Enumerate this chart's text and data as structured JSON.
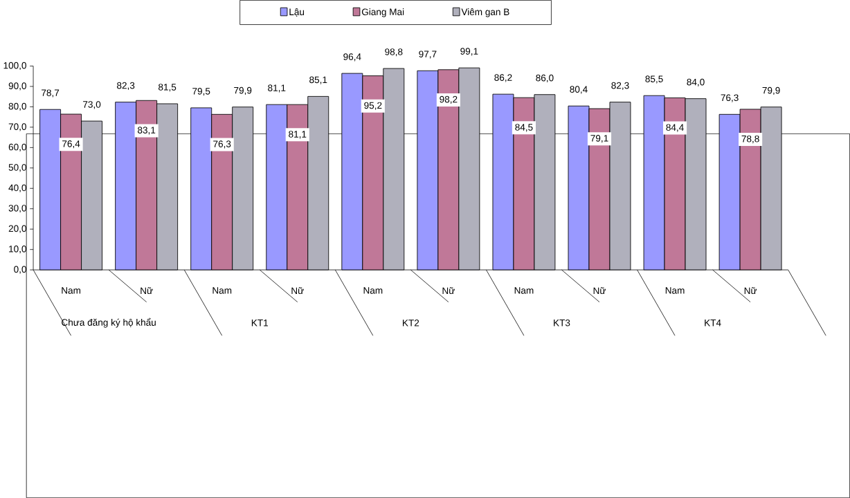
{
  "chart_data": {
    "type": "bar",
    "categories": [
      "Nam",
      "Nữ",
      "Nam",
      "Nữ",
      "Nam",
      "Nữ",
      "Nam",
      "Nữ",
      "Nam",
      "Nữ"
    ],
    "series": [
      {
        "name": "Lậu",
        "color": "#9999ff",
        "values": [
          78.7,
          82.3,
          79.5,
          81.1,
          96.4,
          97.7,
          86.2,
          80.4,
          85.5,
          76.3
        ],
        "value_labels": [
          "78,7",
          "82,3",
          "79,5",
          "81,1",
          "96,4",
          "97,7",
          "86,2",
          "80,4",
          "85,5",
          "76,3"
        ]
      },
      {
        "name": "Giang Mai",
        "color": "#c07898",
        "values": [
          76.4,
          83.1,
          76.3,
          81.1,
          95.2,
          98.2,
          84.5,
          79.1,
          84.4,
          78.8
        ],
        "value_labels": [
          "76,4",
          "83,1",
          "76,3",
          "81,1",
          "95,2",
          "98,2",
          "84,5",
          "79,1",
          "84,4",
          "78,8"
        ]
      },
      {
        "name": "Viêm gan B",
        "color": "#b0b0bc",
        "values": [
          73.0,
          81.5,
          79.9,
          85.1,
          98.8,
          99.1,
          86.0,
          82.3,
          84.0,
          79.9
        ],
        "value_labels": [
          "73,0",
          "81,5",
          "79,9",
          "85,1",
          "98,8",
          "99,1",
          "86,0",
          "82,3",
          "84,0",
          "79,9"
        ]
      }
    ],
    "ylim": [
      0,
      100
    ],
    "yticks": [
      {
        "value": 0,
        "label": "0,0"
      },
      {
        "value": 10,
        "label": "10,0"
      },
      {
        "value": 20,
        "label": "20,0"
      },
      {
        "value": 30,
        "label": "30,0"
      },
      {
        "value": 40,
        "label": "40,0"
      },
      {
        "value": 50,
        "label": "50,0"
      },
      {
        "value": 60,
        "label": "60,0"
      },
      {
        "value": 70,
        "label": "70,0"
      },
      {
        "value": 80,
        "label": "80,0"
      },
      {
        "value": 90,
        "label": "90,0"
      },
      {
        "value": 100,
        "label": "100,0"
      }
    ],
    "annotations": [
      "Chưa đăng ký hộ khẩu",
      "KT1",
      "KT2",
      "KT3",
      "KT4"
    ],
    "legend": "top"
  }
}
